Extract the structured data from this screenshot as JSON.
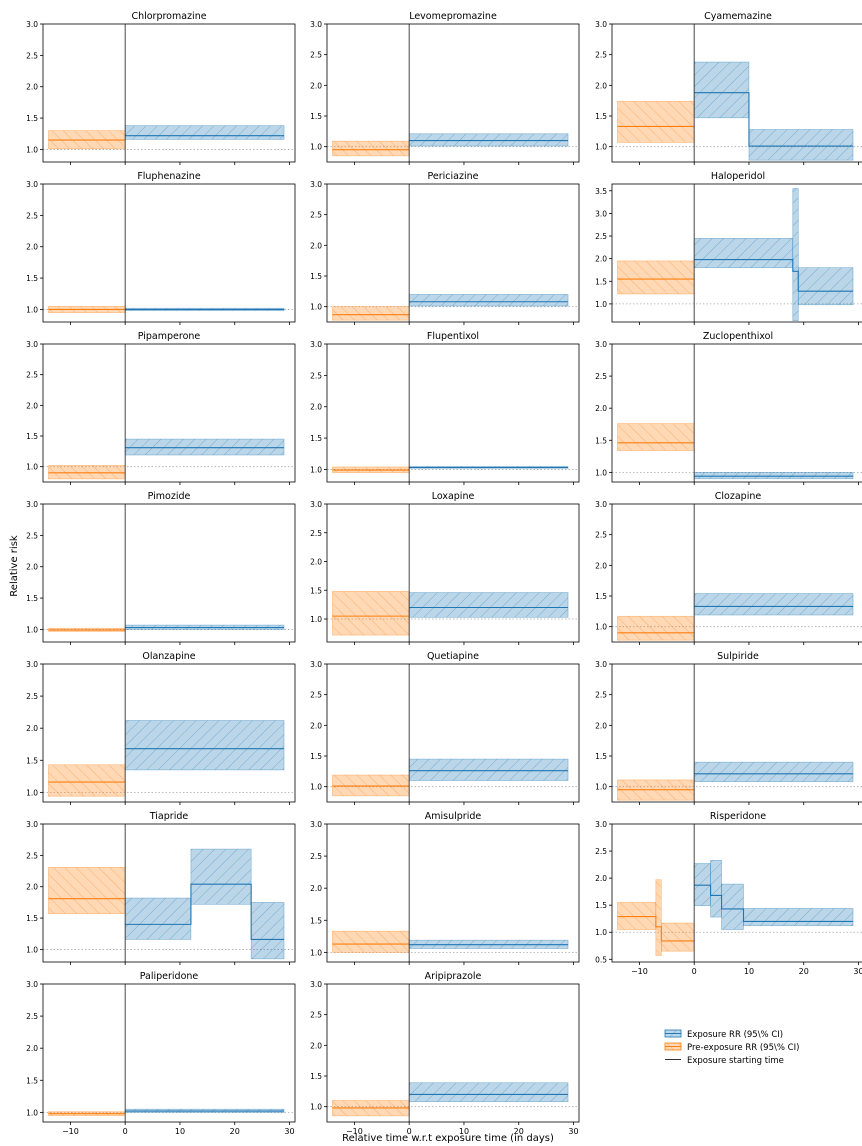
{
  "figure": {
    "ylabel": "Relative risk",
    "xlabel": "Relative time w.r.t exposure time (in days)",
    "legend": {
      "placement": "bottom-right",
      "exposure_label": "Exposure RR (95\\% CI)",
      "pre_label": "Pre-exposure RR (95\\% CI)",
      "start_label": "Exposure starting time"
    },
    "colors": {
      "exposure": "#1f77b4",
      "pre": "#ff7f0e",
      "start_line": "#333333",
      "reference": "#aaaaaa"
    }
  },
  "chart_data": [
    {
      "type": "line",
      "title": "Chlorpromazine",
      "ylim": [
        0.8,
        3.0
      ],
      "yticks": [
        "1.0",
        "1.5",
        "2.0",
        "2.5",
        "3.0"
      ],
      "pre": {
        "x": [
          -14,
          0
        ],
        "rr": 1.15,
        "lo": 1.01,
        "hi": 1.3
      },
      "exposure": [
        {
          "x": [
            0,
            29
          ],
          "rr": 1.22,
          "lo": 1.16,
          "hi": 1.38
        }
      ]
    },
    {
      "type": "line",
      "title": "Levomepromazine",
      "ylim": [
        0.75,
        3.0
      ],
      "yticks": [
        "1.0",
        "1.5",
        "2.0",
        "2.5",
        "3.0"
      ],
      "pre": {
        "x": [
          -14,
          0
        ],
        "rr": 0.95,
        "lo": 0.85,
        "hi": 1.09
      },
      "exposure": [
        {
          "x": [
            0,
            29
          ],
          "rr": 1.1,
          "lo": 1.01,
          "hi": 1.21
        }
      ]
    },
    {
      "type": "line",
      "title": "Cyamemazine",
      "ylim": [
        0.75,
        3.0
      ],
      "yticks": [
        "1.0",
        "1.5",
        "2.0",
        "2.5",
        "3.0"
      ],
      "pre": {
        "x": [
          -14,
          0
        ],
        "rr": 1.33,
        "lo": 1.07,
        "hi": 1.74
      },
      "exposure": [
        {
          "x": [
            0,
            10
          ],
          "rr": 1.88,
          "lo": 1.47,
          "hi": 2.38
        },
        {
          "x": [
            10,
            29
          ],
          "rr": 1.01,
          "lo": 0.78,
          "hi": 1.28
        }
      ]
    },
    {
      "type": "line",
      "title": "Fluphenazine",
      "ylim": [
        0.8,
        3.0
      ],
      "yticks": [
        "1.0",
        "1.5",
        "2.0",
        "2.5",
        "3.0"
      ],
      "pre": {
        "x": [
          -14,
          0
        ],
        "rr": 1.0,
        "lo": 0.95,
        "hi": 1.05
      },
      "exposure": [
        {
          "x": [
            0,
            29
          ],
          "rr": 1.0,
          "lo": 0.98,
          "hi": 1.02
        }
      ]
    },
    {
      "type": "line",
      "title": "Periciazine",
      "ylim": [
        0.75,
        3.0
      ],
      "yticks": [
        "1.0",
        "1.5",
        "2.0",
        "2.5",
        "3.0"
      ],
      "pre": {
        "x": [
          -14,
          0
        ],
        "rr": 0.87,
        "lo": 0.78,
        "hi": 1.0
      },
      "exposure": [
        {
          "x": [
            0,
            29
          ],
          "rr": 1.08,
          "lo": 1.01,
          "hi": 1.2
        }
      ]
    },
    {
      "type": "line",
      "title": "Haloperidol",
      "ylim": [
        0.6,
        3.65
      ],
      "yticks": [
        "1.0",
        "1.5",
        "2.0",
        "2.5",
        "3.0",
        "3.5"
      ],
      "pre": {
        "x": [
          -14,
          0
        ],
        "rr": 1.55,
        "lo": 1.22,
        "hi": 1.95
      },
      "exposure": [
        {
          "x": [
            0,
            18
          ],
          "rr": 1.98,
          "lo": 1.8,
          "hi": 2.45
        },
        {
          "x": [
            18,
            19
          ],
          "rr": 1.72,
          "lo": 0.63,
          "hi": 3.55
        },
        {
          "x": [
            19,
            29
          ],
          "rr": 1.28,
          "lo": 0.98,
          "hi": 1.8
        }
      ]
    },
    {
      "type": "line",
      "title": "Pipamperone",
      "ylim": [
        0.75,
        3.0
      ],
      "yticks": [
        "1.0",
        "1.5",
        "2.0",
        "2.5",
        "3.0"
      ],
      "pre": {
        "x": [
          -14,
          0
        ],
        "rr": 0.9,
        "lo": 0.8,
        "hi": 1.02
      },
      "exposure": [
        {
          "x": [
            0,
            29
          ],
          "rr": 1.31,
          "lo": 1.19,
          "hi": 1.45
        }
      ]
    },
    {
      "type": "line",
      "title": "Flupentixol",
      "ylim": [
        0.8,
        3.0
      ],
      "yticks": [
        "1.0",
        "1.5",
        "2.0",
        "2.5",
        "3.0"
      ],
      "pre": {
        "x": [
          -14,
          0
        ],
        "rr": 0.99,
        "lo": 0.95,
        "hi": 1.04
      },
      "exposure": [
        {
          "x": [
            0,
            29
          ],
          "rr": 1.03,
          "lo": 1.02,
          "hi": 1.05
        }
      ]
    },
    {
      "type": "line",
      "title": "Zuclopenthixol",
      "ylim": [
        0.85,
        3.0
      ],
      "yticks": [
        "1.0",
        "1.5",
        "2.0",
        "2.5",
        "3.0"
      ],
      "pre": {
        "x": [
          -14,
          0
        ],
        "rr": 1.46,
        "lo": 1.34,
        "hi": 1.76
      },
      "exposure": [
        {
          "x": [
            0,
            29
          ],
          "rr": 0.94,
          "lo": 0.9,
          "hi": 1.0
        }
      ]
    },
    {
      "type": "line",
      "title": "Pimozide",
      "ylim": [
        0.8,
        3.0
      ],
      "yticks": [
        "1.0",
        "1.5",
        "2.0",
        "2.5",
        "3.0"
      ],
      "pre": {
        "x": [
          -14,
          0
        ],
        "rr": 0.99,
        "lo": 0.97,
        "hi": 1.02
      },
      "exposure": [
        {
          "x": [
            0,
            29
          ],
          "rr": 1.03,
          "lo": 1.0,
          "hi": 1.07
        }
      ]
    },
    {
      "type": "line",
      "title": "Loxapine",
      "ylim": [
        0.6,
        3.0
      ],
      "yticks": [
        "1.0",
        "1.5",
        "2.0",
        "2.5",
        "3.0"
      ],
      "pre": {
        "x": [
          -14,
          0
        ],
        "rr": 1.05,
        "lo": 0.72,
        "hi": 1.48
      },
      "exposure": [
        {
          "x": [
            0,
            29
          ],
          "rr": 1.2,
          "lo": 1.03,
          "hi": 1.46
        }
      ]
    },
    {
      "type": "line",
      "title": "Clozapine",
      "ylim": [
        0.75,
        3.0
      ],
      "yticks": [
        "1.0",
        "1.5",
        "2.0",
        "2.5",
        "3.0"
      ],
      "pre": {
        "x": [
          -14,
          0
        ],
        "rr": 0.9,
        "lo": 0.78,
        "hi": 1.17
      },
      "exposure": [
        {
          "x": [
            0,
            29
          ],
          "rr": 1.33,
          "lo": 1.19,
          "hi": 1.54
        }
      ]
    },
    {
      "type": "line",
      "title": "Olanzapine",
      "ylim": [
        0.85,
        3.0
      ],
      "yticks": [
        "1.0",
        "1.5",
        "2.0",
        "2.5",
        "3.0"
      ],
      "pre": {
        "x": [
          -14,
          0
        ],
        "rr": 1.16,
        "lo": 0.94,
        "hi": 1.43
      },
      "exposure": [
        {
          "x": [
            0,
            29
          ],
          "rr": 1.68,
          "lo": 1.35,
          "hi": 2.12
        }
      ]
    },
    {
      "type": "line",
      "title": "Quetiapine",
      "ylim": [
        0.75,
        3.0
      ],
      "yticks": [
        "1.0",
        "1.5",
        "2.0",
        "2.5",
        "3.0"
      ],
      "pre": {
        "x": [
          -14,
          0
        ],
        "rr": 1.01,
        "lo": 0.85,
        "hi": 1.19
      },
      "exposure": [
        {
          "x": [
            0,
            29
          ],
          "rr": 1.26,
          "lo": 1.1,
          "hi": 1.45
        }
      ]
    },
    {
      "type": "line",
      "title": "Sulpiride",
      "ylim": [
        0.75,
        3.0
      ],
      "yticks": [
        "1.0",
        "1.5",
        "2.0",
        "2.5",
        "3.0"
      ],
      "pre": {
        "x": [
          -14,
          0
        ],
        "rr": 0.95,
        "lo": 0.78,
        "hi": 1.11
      },
      "exposure": [
        {
          "x": [
            0,
            29
          ],
          "rr": 1.21,
          "lo": 1.08,
          "hi": 1.4
        }
      ]
    },
    {
      "type": "line",
      "title": "Tiapride",
      "ylim": [
        0.8,
        3.0
      ],
      "yticks": [
        "1.0",
        "1.5",
        "2.0",
        "2.5",
        "3.0"
      ],
      "pre": {
        "x": [
          -14,
          0
        ],
        "rr": 1.81,
        "lo": 1.57,
        "hi": 2.31
      },
      "exposure": [
        {
          "x": [
            0,
            12
          ],
          "rr": 1.4,
          "lo": 1.16,
          "hi": 1.82
        },
        {
          "x": [
            12,
            23
          ],
          "rr": 2.04,
          "lo": 1.72,
          "hi": 2.6
        },
        {
          "x": [
            23,
            29
          ],
          "rr": 1.16,
          "lo": 0.85,
          "hi": 1.75
        }
      ]
    },
    {
      "type": "line",
      "title": "Amisulpride",
      "ylim": [
        0.85,
        3.0
      ],
      "yticks": [
        "1.0",
        "1.5",
        "2.0",
        "2.5",
        "3.0"
      ],
      "pre": {
        "x": [
          -14,
          0
        ],
        "rr": 1.13,
        "lo": 1.0,
        "hi": 1.33
      },
      "exposure": [
        {
          "x": [
            0,
            29
          ],
          "rr": 1.12,
          "lo": 1.06,
          "hi": 1.19
        }
      ]
    },
    {
      "type": "line",
      "title": "Risperidone",
      "ylim": [
        0.45,
        3.0
      ],
      "yticks": [
        "0.5",
        "1.0",
        "1.5",
        "2.0",
        "2.5",
        "3.0"
      ],
      "pre_steps": [
        {
          "x": [
            -14,
            -7
          ],
          "rr": 1.29,
          "lo": 1.05,
          "hi": 1.55
        },
        {
          "x": [
            -7,
            -6
          ],
          "rr": 1.1,
          "lo": 0.57,
          "hi": 1.97
        },
        {
          "x": [
            -6,
            0
          ],
          "rr": 0.84,
          "lo": 0.65,
          "hi": 1.17
        }
      ],
      "exposure": [
        {
          "x": [
            0,
            3
          ],
          "rr": 1.87,
          "lo": 1.49,
          "hi": 2.27
        },
        {
          "x": [
            3,
            5
          ],
          "rr": 1.68,
          "lo": 1.28,
          "hi": 2.33
        },
        {
          "x": [
            5,
            9
          ],
          "rr": 1.43,
          "lo": 1.05,
          "hi": 1.89
        },
        {
          "x": [
            9,
            29
          ],
          "rr": 1.2,
          "lo": 1.12,
          "hi": 1.44
        }
      ]
    },
    {
      "type": "line",
      "title": "Paliperidone",
      "ylim": [
        0.85,
        3.0
      ],
      "yticks": [
        "1.0",
        "1.5",
        "2.0",
        "2.5",
        "3.0"
      ],
      "pre": {
        "x": [
          -14,
          0
        ],
        "rr": 0.98,
        "lo": 0.95,
        "hi": 1.01
      },
      "exposure": [
        {
          "x": [
            0,
            29
          ],
          "rr": 1.02,
          "lo": 1.0,
          "hi": 1.05
        }
      ]
    },
    {
      "type": "line",
      "title": "Aripiprazole",
      "ylim": [
        0.75,
        3.0
      ],
      "yticks": [
        "1.0",
        "1.5",
        "2.0",
        "2.5",
        "3.0"
      ],
      "pre": {
        "x": [
          -14,
          0
        ],
        "rr": 0.98,
        "lo": 0.85,
        "hi": 1.1
      },
      "exposure": [
        {
          "x": [
            0,
            29
          ],
          "rr": 1.2,
          "lo": 1.08,
          "hi": 1.39
        }
      ]
    }
  ],
  "xaxis": {
    "xlim": [
      -15,
      31
    ],
    "ticks": [
      -10,
      0,
      10,
      20,
      30
    ],
    "tick_labels": [
      "−10",
      "0",
      "10",
      "20",
      "30"
    ]
  }
}
